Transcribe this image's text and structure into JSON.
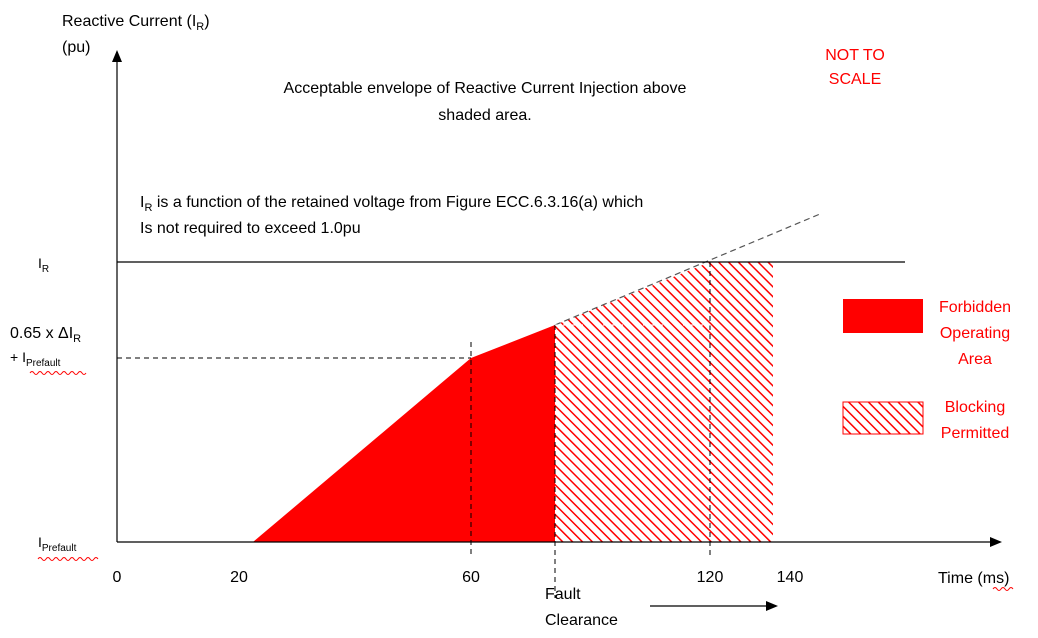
{
  "chart_data": {
    "type": "area",
    "ylabel_main": "Reactive Current (I",
    "ylabel_sub": "R",
    "ylabel_close": ")",
    "ylabel_unit": "(pu)",
    "xlabel_main": "Time (",
    "xlabel_unit": "ms",
    "xlabel_close": ")",
    "not_to_scale_line1": "NOT TO",
    "not_to_scale_line2": "SCALE",
    "annotation_envelope_line1": "Acceptable envelope of Reactive Current Injection above",
    "annotation_envelope_line2": "shaded area.",
    "annotation_function_main": "I",
    "annotation_function_sub": "R",
    "annotation_function_rest": " is a function of the retained voltage from Figure ECC.6.3.16(a) which",
    "annotation_function_line2": "Is not required to exceed 1.0pu",
    "y_ticks": {
      "ir_main": "I",
      "ir_sub": "R",
      "mid_line1_main": "0.65 x ΔI",
      "mid_line1_sub": "R",
      "mid_line2_main": "+ I",
      "mid_line2_sub": "Prefault",
      "prefault_main": "I",
      "prefault_sub": "Prefault"
    },
    "x_ticks": [
      "0",
      "20",
      "60",
      "120",
      "140"
    ],
    "fault_clearance_line1": "Fault",
    "fault_clearance_line2": "Clearance",
    "legend": {
      "forbidden_line1": "Forbidden",
      "forbidden_line2": "Operating",
      "forbidden_line3": "Area",
      "blocking_line1": "Blocking",
      "blocking_line2": "Permitted"
    },
    "colors": {
      "forbidden": "#ff0000",
      "hatch": "#ff0000",
      "axis": "#000000",
      "label_red": "#ff0000"
    }
  }
}
